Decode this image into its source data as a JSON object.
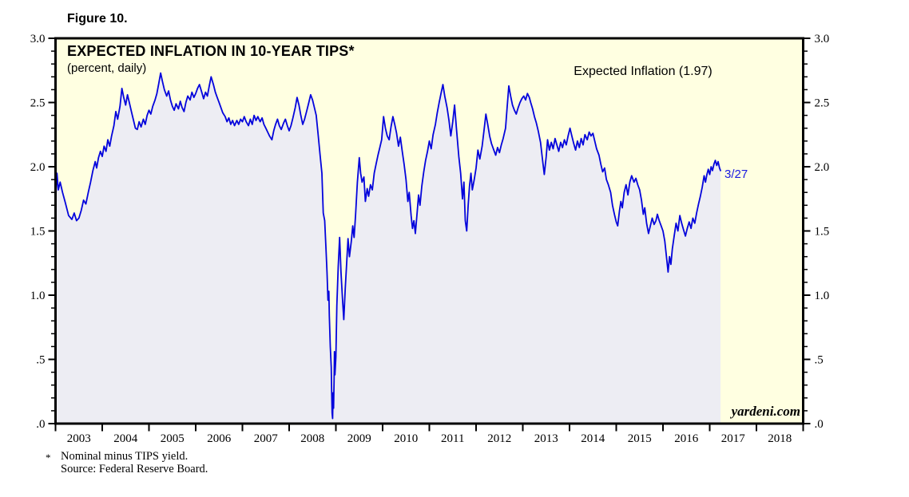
{
  "figure_label": "Figure 10.",
  "chart": {
    "title": "EXPECTED INFLATION IN 10-YEAR TIPS*",
    "subtitle": "(percent, daily)",
    "legend": "Expected Inflation (1.97)",
    "last_point_label": "3/27",
    "watermark": "yardeni.com",
    "footnote": {
      "marker": "*",
      "line1": "Nominal minus TIPS yield.",
      "line2": "Source: Federal Reserve Board."
    }
  },
  "colors": {
    "page_bg": "#FFFFFF",
    "plot_bg": "#FFFFE1",
    "area_fill": "#EDEDF3",
    "line": "#0404DC",
    "frame": "#000000",
    "annotation": "#1A1AE0"
  },
  "chart_data": {
    "type": "area",
    "title": "EXPECTED INFLATION IN 10-YEAR TIPS*",
    "units": "percent, daily",
    "series_name": "Expected Inflation",
    "last_value": 1.97,
    "last_date_label": "3/27",
    "source": "Federal Reserve Board",
    "grid": false,
    "legend_position": "top-right-inside",
    "x_range": [
      2003,
      2019
    ],
    "y_range": [
      0,
      3
    ],
    "y_minor_tick_step": 0.1,
    "y_axis_ticks": [
      {
        "value": 3.0,
        "label": "3.0"
      },
      {
        "value": 2.5,
        "label": "2.5"
      },
      {
        "value": 2.0,
        "label": "2.0"
      },
      {
        "value": 1.5,
        "label": "1.5"
      },
      {
        "value": 1.0,
        "label": "1.0"
      },
      {
        "value": 0.5,
        "label": ".5"
      },
      {
        "value": 0.0,
        "label": ".0"
      }
    ],
    "x_axis_years": [
      "2003",
      "2004",
      "2005",
      "2006",
      "2007",
      "2008",
      "2009",
      "2010",
      "2011",
      "2012",
      "2013",
      "2014",
      "2015",
      "2016",
      "2017",
      "2018"
    ],
    "points": [
      [
        2003.0,
        1.72
      ],
      [
        2003.03,
        1.95
      ],
      [
        2003.06,
        1.82
      ],
      [
        2003.1,
        1.88
      ],
      [
        2003.15,
        1.8
      ],
      [
        2003.21,
        1.72
      ],
      [
        2003.28,
        1.62
      ],
      [
        2003.35,
        1.59
      ],
      [
        2003.4,
        1.64
      ],
      [
        2003.45,
        1.58
      ],
      [
        2003.5,
        1.6
      ],
      [
        2003.55,
        1.66
      ],
      [
        2003.6,
        1.74
      ],
      [
        2003.65,
        1.71
      ],
      [
        2003.7,
        1.8
      ],
      [
        2003.75,
        1.88
      ],
      [
        2003.8,
        1.97
      ],
      [
        2003.85,
        2.04
      ],
      [
        2003.88,
        1.99
      ],
      [
        2003.92,
        2.07
      ],
      [
        2003.96,
        2.12
      ],
      [
        2004.0,
        2.08
      ],
      [
        2004.04,
        2.16
      ],
      [
        2004.08,
        2.12
      ],
      [
        2004.12,
        2.21
      ],
      [
        2004.16,
        2.16
      ],
      [
        2004.2,
        2.24
      ],
      [
        2004.25,
        2.32
      ],
      [
        2004.29,
        2.43
      ],
      [
        2004.33,
        2.37
      ],
      [
        2004.38,
        2.47
      ],
      [
        2004.42,
        2.61
      ],
      [
        2004.46,
        2.54
      ],
      [
        2004.5,
        2.48
      ],
      [
        2004.54,
        2.56
      ],
      [
        2004.58,
        2.5
      ],
      [
        2004.63,
        2.42
      ],
      [
        2004.67,
        2.36
      ],
      [
        2004.71,
        2.3
      ],
      [
        2004.75,
        2.29
      ],
      [
        2004.79,
        2.35
      ],
      [
        2004.83,
        2.31
      ],
      [
        2004.88,
        2.37
      ],
      [
        2004.92,
        2.33
      ],
      [
        2004.96,
        2.4
      ],
      [
        2005.0,
        2.44
      ],
      [
        2005.04,
        2.41
      ],
      [
        2005.08,
        2.47
      ],
      [
        2005.13,
        2.52
      ],
      [
        2005.17,
        2.57
      ],
      [
        2005.21,
        2.65
      ],
      [
        2005.25,
        2.73
      ],
      [
        2005.29,
        2.66
      ],
      [
        2005.33,
        2.6
      ],
      [
        2005.38,
        2.55
      ],
      [
        2005.42,
        2.59
      ],
      [
        2005.46,
        2.52
      ],
      [
        2005.5,
        2.47
      ],
      [
        2005.54,
        2.44
      ],
      [
        2005.58,
        2.49
      ],
      [
        2005.63,
        2.45
      ],
      [
        2005.67,
        2.51
      ],
      [
        2005.71,
        2.46
      ],
      [
        2005.75,
        2.43
      ],
      [
        2005.79,
        2.5
      ],
      [
        2005.83,
        2.55
      ],
      [
        2005.88,
        2.52
      ],
      [
        2005.92,
        2.58
      ],
      [
        2005.96,
        2.54
      ],
      [
        2006.0,
        2.57
      ],
      [
        2006.04,
        2.61
      ],
      [
        2006.08,
        2.64
      ],
      [
        2006.13,
        2.58
      ],
      [
        2006.17,
        2.53
      ],
      [
        2006.21,
        2.58
      ],
      [
        2006.25,
        2.55
      ],
      [
        2006.29,
        2.63
      ],
      [
        2006.33,
        2.7
      ],
      [
        2006.38,
        2.64
      ],
      [
        2006.42,
        2.58
      ],
      [
        2006.46,
        2.54
      ],
      [
        2006.5,
        2.5
      ],
      [
        2006.54,
        2.46
      ],
      [
        2006.58,
        2.42
      ],
      [
        2006.63,
        2.39
      ],
      [
        2006.67,
        2.35
      ],
      [
        2006.71,
        2.38
      ],
      [
        2006.75,
        2.33
      ],
      [
        2006.79,
        2.36
      ],
      [
        2006.83,
        2.32
      ],
      [
        2006.88,
        2.36
      ],
      [
        2006.92,
        2.33
      ],
      [
        2006.96,
        2.37
      ],
      [
        2007.0,
        2.35
      ],
      [
        2007.04,
        2.39
      ],
      [
        2007.08,
        2.35
      ],
      [
        2007.13,
        2.32
      ],
      [
        2007.17,
        2.37
      ],
      [
        2007.21,
        2.33
      ],
      [
        2007.25,
        2.4
      ],
      [
        2007.29,
        2.36
      ],
      [
        2007.33,
        2.39
      ],
      [
        2007.38,
        2.35
      ],
      [
        2007.42,
        2.38
      ],
      [
        2007.46,
        2.33
      ],
      [
        2007.5,
        2.3
      ],
      [
        2007.54,
        2.27
      ],
      [
        2007.58,
        2.24
      ],
      [
        2007.63,
        2.21
      ],
      [
        2007.67,
        2.28
      ],
      [
        2007.71,
        2.33
      ],
      [
        2007.75,
        2.37
      ],
      [
        2007.79,
        2.32
      ],
      [
        2007.83,
        2.29
      ],
      [
        2007.88,
        2.34
      ],
      [
        2007.92,
        2.37
      ],
      [
        2007.96,
        2.32
      ],
      [
        2008.0,
        2.28
      ],
      [
        2008.04,
        2.32
      ],
      [
        2008.08,
        2.38
      ],
      [
        2008.13,
        2.46
      ],
      [
        2008.17,
        2.54
      ],
      [
        2008.21,
        2.48
      ],
      [
        2008.25,
        2.4
      ],
      [
        2008.29,
        2.33
      ],
      [
        2008.33,
        2.37
      ],
      [
        2008.38,
        2.44
      ],
      [
        2008.42,
        2.5
      ],
      [
        2008.46,
        2.56
      ],
      [
        2008.5,
        2.52
      ],
      [
        2008.54,
        2.46
      ],
      [
        2008.58,
        2.4
      ],
      [
        2008.62,
        2.25
      ],
      [
        2008.66,
        2.1
      ],
      [
        2008.7,
        1.95
      ],
      [
        2008.73,
        1.64
      ],
      [
        2008.76,
        1.58
      ],
      [
        2008.79,
        1.35
      ],
      [
        2008.81,
        1.18
      ],
      [
        2008.83,
        0.96
      ],
      [
        2008.85,
        1.03
      ],
      [
        2008.86,
        0.84
      ],
      [
        2008.88,
        0.6
      ],
      [
        2008.9,
        0.44
      ],
      [
        2008.91,
        0.26
      ],
      [
        2008.92,
        0.08
      ],
      [
        2008.93,
        0.04
      ],
      [
        2008.94,
        0.24
      ],
      [
        2008.95,
        0.12
      ],
      [
        2008.96,
        0.32
      ],
      [
        2008.97,
        0.56
      ],
      [
        2008.98,
        0.38
      ],
      [
        2009.0,
        0.52
      ],
      [
        2009.02,
        0.92
      ],
      [
        2009.05,
        1.22
      ],
      [
        2009.08,
        1.45
      ],
      [
        2009.11,
        1.18
      ],
      [
        2009.14,
        0.98
      ],
      [
        2009.17,
        0.81
      ],
      [
        2009.2,
        1.05
      ],
      [
        2009.23,
        1.25
      ],
      [
        2009.26,
        1.44
      ],
      [
        2009.29,
        1.3
      ],
      [
        2009.33,
        1.42
      ],
      [
        2009.36,
        1.54
      ],
      [
        2009.39,
        1.45
      ],
      [
        2009.42,
        1.62
      ],
      [
        2009.46,
        1.88
      ],
      [
        2009.5,
        2.07
      ],
      [
        2009.53,
        1.95
      ],
      [
        2009.56,
        1.88
      ],
      [
        2009.6,
        1.92
      ],
      [
        2009.63,
        1.73
      ],
      [
        2009.67,
        1.83
      ],
      [
        2009.7,
        1.77
      ],
      [
        2009.74,
        1.86
      ],
      [
        2009.78,
        1.82
      ],
      [
        2009.82,
        1.95
      ],
      [
        2009.86,
        2.02
      ],
      [
        2009.9,
        2.09
      ],
      [
        2009.94,
        2.15
      ],
      [
        2009.98,
        2.21
      ],
      [
        2010.02,
        2.39
      ],
      [
        2010.06,
        2.3
      ],
      [
        2010.1,
        2.24
      ],
      [
        2010.14,
        2.21
      ],
      [
        2010.18,
        2.31
      ],
      [
        2010.22,
        2.39
      ],
      [
        2010.26,
        2.33
      ],
      [
        2010.3,
        2.26
      ],
      [
        2010.34,
        2.16
      ],
      [
        2010.38,
        2.23
      ],
      [
        2010.42,
        2.12
      ],
      [
        2010.46,
        2.02
      ],
      [
        2010.5,
        1.9
      ],
      [
        2010.54,
        1.73
      ],
      [
        2010.57,
        1.8
      ],
      [
        2010.61,
        1.62
      ],
      [
        2010.64,
        1.52
      ],
      [
        2010.67,
        1.58
      ],
      [
        2010.7,
        1.48
      ],
      [
        2010.74,
        1.65
      ],
      [
        2010.77,
        1.78
      ],
      [
        2010.8,
        1.7
      ],
      [
        2010.84,
        1.85
      ],
      [
        2010.88,
        1.96
      ],
      [
        2010.92,
        2.05
      ],
      [
        2010.96,
        2.12
      ],
      [
        2011.0,
        2.2
      ],
      [
        2011.04,
        2.14
      ],
      [
        2011.08,
        2.25
      ],
      [
        2011.13,
        2.33
      ],
      [
        2011.17,
        2.42
      ],
      [
        2011.21,
        2.5
      ],
      [
        2011.25,
        2.57
      ],
      [
        2011.29,
        2.64
      ],
      [
        2011.33,
        2.55
      ],
      [
        2011.38,
        2.46
      ],
      [
        2011.42,
        2.36
      ],
      [
        2011.46,
        2.24
      ],
      [
        2011.5,
        2.35
      ],
      [
        2011.54,
        2.48
      ],
      [
        2011.58,
        2.3
      ],
      [
        2011.63,
        2.08
      ],
      [
        2011.67,
        1.95
      ],
      [
        2011.71,
        1.75
      ],
      [
        2011.74,
        1.88
      ],
      [
        2011.77,
        1.58
      ],
      [
        2011.8,
        1.5
      ],
      [
        2011.83,
        1.7
      ],
      [
        2011.86,
        1.85
      ],
      [
        2011.89,
        1.95
      ],
      [
        2011.92,
        1.82
      ],
      [
        2011.96,
        1.9
      ],
      [
        2012.0,
        1.99
      ],
      [
        2012.04,
        2.13
      ],
      [
        2012.08,
        2.06
      ],
      [
        2012.13,
        2.16
      ],
      [
        2012.17,
        2.28
      ],
      [
        2012.21,
        2.41
      ],
      [
        2012.25,
        2.33
      ],
      [
        2012.29,
        2.24
      ],
      [
        2012.33,
        2.18
      ],
      [
        2012.38,
        2.13
      ],
      [
        2012.42,
        2.09
      ],
      [
        2012.46,
        2.15
      ],
      [
        2012.5,
        2.11
      ],
      [
        2012.54,
        2.17
      ],
      [
        2012.58,
        2.22
      ],
      [
        2012.63,
        2.3
      ],
      [
        2012.66,
        2.44
      ],
      [
        2012.7,
        2.63
      ],
      [
        2012.74,
        2.55
      ],
      [
        2012.78,
        2.48
      ],
      [
        2012.82,
        2.44
      ],
      [
        2012.86,
        2.41
      ],
      [
        2012.9,
        2.46
      ],
      [
        2012.94,
        2.5
      ],
      [
        2012.98,
        2.53
      ],
      [
        2013.02,
        2.55
      ],
      [
        2013.06,
        2.52
      ],
      [
        2013.1,
        2.57
      ],
      [
        2013.14,
        2.54
      ],
      [
        2013.17,
        2.5
      ],
      [
        2013.21,
        2.45
      ],
      [
        2013.25,
        2.39
      ],
      [
        2013.29,
        2.34
      ],
      [
        2013.33,
        2.28
      ],
      [
        2013.38,
        2.19
      ],
      [
        2013.42,
        2.06
      ],
      [
        2013.46,
        1.94
      ],
      [
        2013.5,
        2.08
      ],
      [
        2013.53,
        2.21
      ],
      [
        2013.57,
        2.13
      ],
      [
        2013.61,
        2.19
      ],
      [
        2013.65,
        2.14
      ],
      [
        2013.69,
        2.22
      ],
      [
        2013.73,
        2.17
      ],
      [
        2013.77,
        2.12
      ],
      [
        2013.81,
        2.19
      ],
      [
        2013.85,
        2.15
      ],
      [
        2013.89,
        2.21
      ],
      [
        2013.93,
        2.17
      ],
      [
        2013.97,
        2.24
      ],
      [
        2014.01,
        2.3
      ],
      [
        2014.05,
        2.24
      ],
      [
        2014.09,
        2.18
      ],
      [
        2014.13,
        2.13
      ],
      [
        2014.17,
        2.2
      ],
      [
        2014.21,
        2.15
      ],
      [
        2014.25,
        2.22
      ],
      [
        2014.29,
        2.17
      ],
      [
        2014.33,
        2.25
      ],
      [
        2014.38,
        2.21
      ],
      [
        2014.42,
        2.27
      ],
      [
        2014.46,
        2.24
      ],
      [
        2014.5,
        2.26
      ],
      [
        2014.54,
        2.2
      ],
      [
        2014.58,
        2.14
      ],
      [
        2014.63,
        2.09
      ],
      [
        2014.67,
        2.02
      ],
      [
        2014.71,
        1.96
      ],
      [
        2014.75,
        1.99
      ],
      [
        2014.79,
        1.9
      ],
      [
        2014.83,
        1.86
      ],
      [
        2014.88,
        1.8
      ],
      [
        2014.92,
        1.7
      ],
      [
        2014.96,
        1.63
      ],
      [
        2015.0,
        1.57
      ],
      [
        2015.03,
        1.54
      ],
      [
        2015.07,
        1.66
      ],
      [
        2015.1,
        1.73
      ],
      [
        2015.13,
        1.68
      ],
      [
        2015.17,
        1.8
      ],
      [
        2015.21,
        1.86
      ],
      [
        2015.25,
        1.78
      ],
      [
        2015.29,
        1.88
      ],
      [
        2015.33,
        1.93
      ],
      [
        2015.38,
        1.88
      ],
      [
        2015.42,
        1.91
      ],
      [
        2015.46,
        1.86
      ],
      [
        2015.5,
        1.82
      ],
      [
        2015.54,
        1.74
      ],
      [
        2015.58,
        1.63
      ],
      [
        2015.61,
        1.68
      ],
      [
        2015.65,
        1.56
      ],
      [
        2015.69,
        1.48
      ],
      [
        2015.73,
        1.54
      ],
      [
        2015.77,
        1.6
      ],
      [
        2015.81,
        1.55
      ],
      [
        2015.85,
        1.58
      ],
      [
        2015.88,
        1.63
      ],
      [
        2015.92,
        1.58
      ],
      [
        2015.96,
        1.54
      ],
      [
        2016.0,
        1.5
      ],
      [
        2016.04,
        1.42
      ],
      [
        2016.08,
        1.28
      ],
      [
        2016.11,
        1.18
      ],
      [
        2016.14,
        1.3
      ],
      [
        2016.17,
        1.24
      ],
      [
        2016.2,
        1.36
      ],
      [
        2016.24,
        1.46
      ],
      [
        2016.28,
        1.56
      ],
      [
        2016.32,
        1.5
      ],
      [
        2016.36,
        1.62
      ],
      [
        2016.4,
        1.56
      ],
      [
        2016.44,
        1.51
      ],
      [
        2016.48,
        1.46
      ],
      [
        2016.52,
        1.52
      ],
      [
        2016.56,
        1.57
      ],
      [
        2016.6,
        1.52
      ],
      [
        2016.64,
        1.6
      ],
      [
        2016.68,
        1.56
      ],
      [
        2016.72,
        1.64
      ],
      [
        2016.76,
        1.71
      ],
      [
        2016.8,
        1.77
      ],
      [
        2016.84,
        1.84
      ],
      [
        2016.88,
        1.93
      ],
      [
        2016.91,
        1.88
      ],
      [
        2016.94,
        1.94
      ],
      [
        2016.97,
        1.98
      ],
      [
        2017.0,
        1.94
      ],
      [
        2017.03,
        2.0
      ],
      [
        2017.06,
        1.97
      ],
      [
        2017.09,
        2.02
      ],
      [
        2017.12,
        2.05
      ],
      [
        2017.15,
        2.01
      ],
      [
        2017.18,
        2.04
      ],
      [
        2017.21,
        1.99
      ],
      [
        2017.23,
        1.97
      ]
    ]
  }
}
